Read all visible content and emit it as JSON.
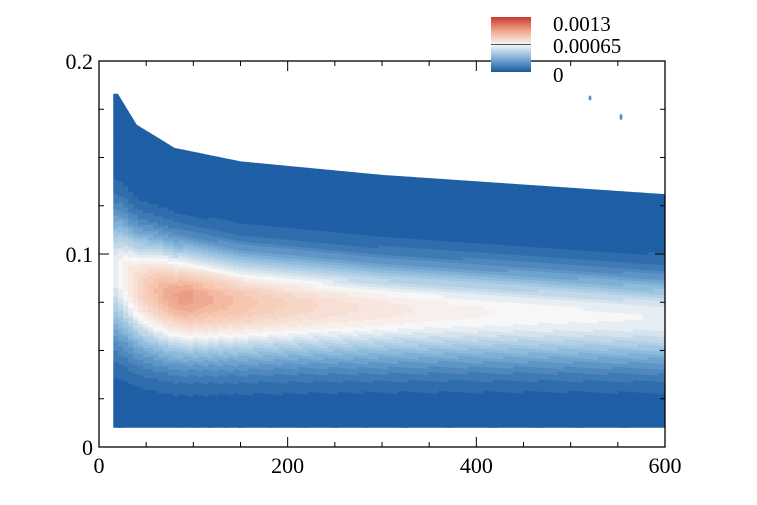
{
  "chart_data": {
    "type": "heatmap",
    "title": "",
    "xlabel": "",
    "ylabel": "",
    "xlim": [
      0,
      600
    ],
    "ylim": [
      0,
      0.2
    ],
    "x_ticks": [
      {
        "value": 0,
        "label": "0"
      },
      {
        "value": 200,
        "label": "200"
      },
      {
        "value": 400,
        "label": "400"
      },
      {
        "value": 600,
        "label": "600"
      }
    ],
    "y_ticks": [
      {
        "value": 0,
        "label": "0"
      },
      {
        "value": 0.1,
        "label": "0.1"
      },
      {
        "value": 0.2,
        "label": "0.2"
      }
    ],
    "color_scale": {
      "min": 0,
      "max": 0.0013,
      "low_color": "#2166ac",
      "mid_color": "#f7f7f7",
      "high_color": "#d6604d",
      "levels": 26
    },
    "legend": {
      "placement": "top-right",
      "labels": [
        "0.0013",
        "0.00065",
        "0"
      ]
    },
    "field": {
      "x_start": 15,
      "x_end": 600,
      "y_bottom": 0.01,
      "y_top_at_x": [
        [
          15,
          0.183
        ],
        [
          20,
          0.183
        ],
        [
          40,
          0.167
        ],
        [
          80,
          0.155
        ],
        [
          150,
          0.148
        ],
        [
          300,
          0.141
        ],
        [
          450,
          0.136
        ],
        [
          600,
          0.131
        ]
      ],
      "peak_value": 0.00112,
      "peak_x": 95,
      "peak_y": 0.08
    }
  }
}
